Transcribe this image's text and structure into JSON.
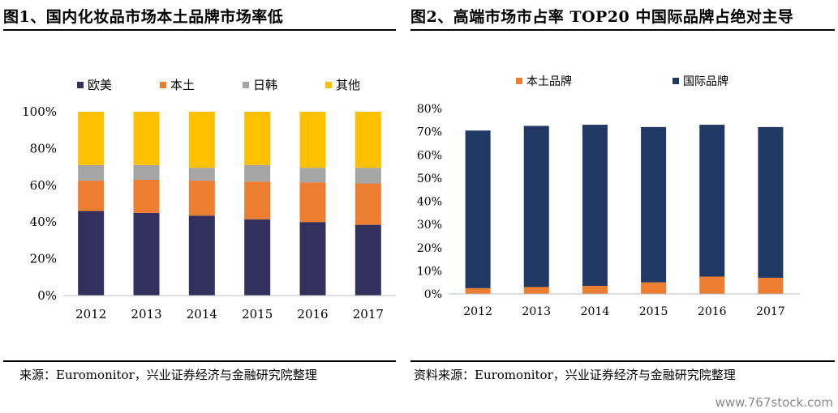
{
  "figure_left": {
    "title": "图1、国内化妆品市场本土品牌市场率低",
    "source": "来源：Euromonitor，兴业证券经济与金融研究院整理"
  },
  "figure_right": {
    "title": "图2、高端市场市占率 TOP20 中国际品牌占绝对主导",
    "source": "资料来源：Euromonitor，兴业证券经济与金融研究院整理"
  },
  "watermark": "www.767stock.com",
  "chart_data": [
    {
      "type": "bar",
      "stacked": true,
      "categories": [
        "2012",
        "2013",
        "2014",
        "2015",
        "2016",
        "2017"
      ],
      "ylim": [
        0,
        100
      ],
      "yticks": [
        "0%",
        "20%",
        "40%",
        "60%",
        "80%",
        "100%"
      ],
      "legend_position": "top",
      "grid": false,
      "series": [
        {
          "name": "欧美",
          "color": "#34305e",
          "values": [
            46,
            45,
            43.5,
            41.5,
            40,
            38.5
          ]
        },
        {
          "name": "本土",
          "color": "#ed7d31",
          "values": [
            16.5,
            18,
            19,
            20.5,
            21.5,
            22.5
          ]
        },
        {
          "name": "日韩",
          "color": "#a5a5a5",
          "values": [
            8.5,
            8,
            7,
            9,
            8,
            8.5
          ]
        },
        {
          "name": "其他",
          "color": "#ffc000",
          "values": [
            29,
            29,
            30.5,
            29,
            30.5,
            30.5
          ]
        }
      ]
    },
    {
      "type": "bar",
      "stacked": true,
      "categories": [
        "2012",
        "2013",
        "2014",
        "2015",
        "2016",
        "2017"
      ],
      "ylim": [
        0,
        80
      ],
      "yticks": [
        "0%",
        "10%",
        "20%",
        "30%",
        "40%",
        "50%",
        "60%",
        "70%",
        "80%"
      ],
      "legend_position": "top",
      "grid": false,
      "series": [
        {
          "name": "本土品牌",
          "color": "#ed7d31",
          "values": [
            2.5,
            3,
            3.5,
            5,
            7.5,
            7
          ]
        },
        {
          "name": "国际品牌",
          "color": "#203864",
          "values": [
            68,
            69.5,
            69.5,
            67,
            65.5,
            65
          ]
        }
      ]
    }
  ]
}
